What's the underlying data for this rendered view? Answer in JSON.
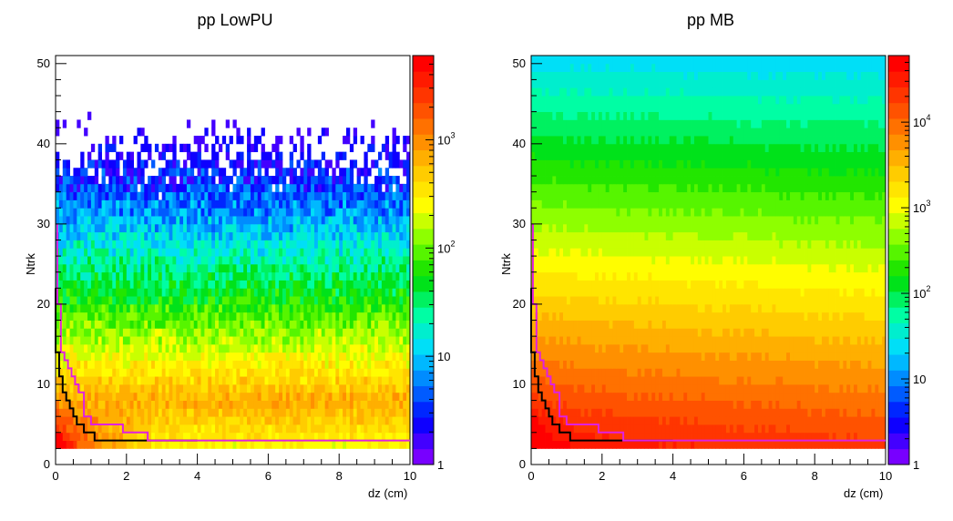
{
  "chart_data": [
    {
      "type": "heatmap",
      "title": "pp LowPU",
      "xlabel": "dz (cm)",
      "ylabel": "Ntrk",
      "xlim": [
        0,
        10
      ],
      "ylim": [
        0,
        51
      ],
      "x_ticks": [
        0,
        2,
        4,
        6,
        8,
        10
      ],
      "y_ticks": [
        0,
        10,
        20,
        30,
        40,
        50
      ],
      "z_scale": "log",
      "zlim": [
        1,
        6000
      ],
      "colorbar_labels": [
        {
          "value": 1,
          "base": "1",
          "exp": ""
        },
        {
          "value": 10,
          "base": "10",
          "exp": ""
        },
        {
          "value": 100,
          "base": "10",
          "exp": "2"
        },
        {
          "value": 1000,
          "base": "10",
          "exp": "3"
        }
      ],
      "cutoff_lines": [
        {
          "color": "#000000",
          "steps": [
            [
              0,
              22
            ],
            [
              0.1,
              14
            ],
            [
              0.2,
              11
            ],
            [
              0.3,
              9
            ],
            [
              0.4,
              8
            ],
            [
              0.5,
              7
            ],
            [
              0.6,
              6
            ],
            [
              0.8,
              5
            ],
            [
              1.1,
              4
            ],
            [
              1.5,
              3
            ],
            [
              4.0,
              3
            ]
          ]
        },
        {
          "color": "#e020e0",
          "steps": [
            [
              0.05,
              30
            ],
            [
              0.15,
              20
            ],
            [
              0.25,
              14
            ],
            [
              0.35,
              13
            ],
            [
              0.45,
              12
            ],
            [
              0.55,
              11
            ],
            [
              0.65,
              10
            ],
            [
              0.8,
              9
            ],
            [
              1.0,
              6
            ],
            [
              1.9,
              5
            ],
            [
              2.6,
              4
            ],
            [
              4.8,
              3
            ],
            [
              10.0,
              3
            ]
          ]
        }
      ]
    },
    {
      "type": "heatmap",
      "title": "pp MB",
      "xlabel": "dz (cm)",
      "ylabel": "Ntrk",
      "xlim": [
        0,
        10
      ],
      "ylim": [
        0,
        51
      ],
      "x_ticks": [
        0,
        2,
        4,
        6,
        8,
        10
      ],
      "y_ticks": [
        0,
        10,
        20,
        30,
        40,
        50
      ],
      "z_scale": "log",
      "zlim": [
        1,
        60000
      ],
      "colorbar_labels": [
        {
          "value": 1,
          "base": "1",
          "exp": ""
        },
        {
          "value": 10,
          "base": "10",
          "exp": ""
        },
        {
          "value": 100,
          "base": "10",
          "exp": "2"
        },
        {
          "value": 1000,
          "base": "10",
          "exp": "3"
        },
        {
          "value": 10000,
          "base": "10",
          "exp": "4"
        }
      ],
      "cutoff_lines": [
        {
          "color": "#000000",
          "steps": [
            [
              0,
              22
            ],
            [
              0.1,
              14
            ],
            [
              0.2,
              11
            ],
            [
              0.3,
              9
            ],
            [
              0.4,
              8
            ],
            [
              0.5,
              7
            ],
            [
              0.6,
              6
            ],
            [
              0.8,
              5
            ],
            [
              1.1,
              4
            ],
            [
              1.5,
              3
            ],
            [
              4.0,
              3
            ]
          ]
        },
        {
          "color": "#e020e0",
          "steps": [
            [
              0.05,
              30
            ],
            [
              0.15,
              20
            ],
            [
              0.25,
              14
            ],
            [
              0.35,
              13
            ],
            [
              0.45,
              12
            ],
            [
              0.55,
              11
            ],
            [
              0.65,
              10
            ],
            [
              0.8,
              9
            ],
            [
              1.0,
              6
            ],
            [
              1.9,
              5
            ],
            [
              2.6,
              4
            ],
            [
              4.8,
              3
            ],
            [
              10.0,
              3
            ]
          ]
        }
      ]
    }
  ]
}
